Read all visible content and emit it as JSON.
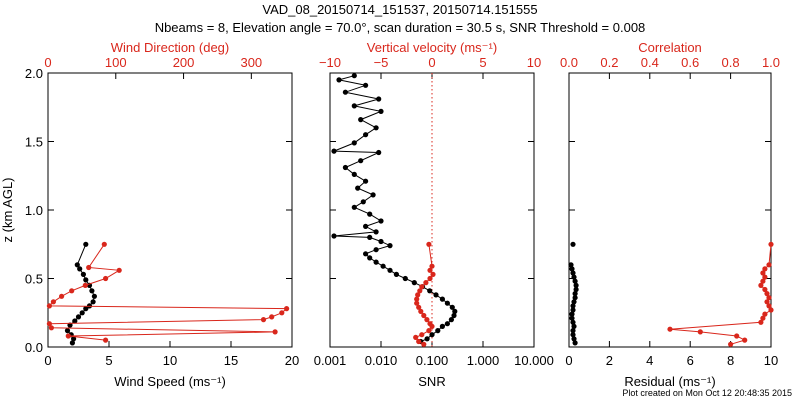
{
  "figure": {
    "title_line1": "VAD_08_20150714_151537, 20150714.151555",
    "title_line2": "Nbeams = 8, Elevation angle = 70.0°, scan duration = 30.5 s, SNR Threshold = 0.008",
    "footer": "Plot created on Mon Oct 12 20:48:35 2015",
    "colors": {
      "black_series": "#000000",
      "red_series": "#d9271c",
      "axis": "#000000"
    }
  },
  "chart_data": [
    {
      "type": "line",
      "panel": "wind",
      "ylabel": "z (km AGL)",
      "ylim": [
        0,
        2.0
      ],
      "yticks": [
        "0.0",
        "0.5",
        "1.0",
        "1.5",
        "2.0"
      ],
      "ytick_values": [
        0,
        0.5,
        1.0,
        1.5,
        2.0
      ],
      "bottom_axis": {
        "label": "Wind Speed (ms⁻¹)",
        "range": [
          0,
          20
        ],
        "ticks": [
          "0",
          "5",
          "10",
          "15",
          "20"
        ],
        "tick_values": [
          0,
          5,
          10,
          15,
          20
        ]
      },
      "top_axis": {
        "label": "Wind Direction (deg)",
        "range": [
          0,
          360
        ],
        "ticks": [
          "0",
          "100",
          "200",
          "300"
        ],
        "tick_values": [
          0,
          100,
          200,
          300
        ]
      },
      "series": [
        {
          "axis": "bottom",
          "color": "#000000",
          "values": [
            {
              "x": 3.1,
              "y": 0.75
            },
            {
              "x": 2.4,
              "y": 0.6
            },
            {
              "x": 2.6,
              "y": 0.57
            },
            {
              "x": 2.9,
              "y": 0.53
            },
            {
              "x": 3.1,
              "y": 0.49
            },
            {
              "x": 3.4,
              "y": 0.45
            },
            {
              "x": 3.6,
              "y": 0.41
            },
            {
              "x": 3.8,
              "y": 0.37
            },
            {
              "x": 3.7,
              "y": 0.33
            },
            {
              "x": 3.4,
              "y": 0.3
            },
            {
              "x": 3.1,
              "y": 0.28
            },
            {
              "x": 2.8,
              "y": 0.25
            },
            {
              "x": 2.5,
              "y": 0.22
            },
            {
              "x": 2.2,
              "y": 0.19
            },
            {
              "x": 1.8,
              "y": 0.16
            },
            {
              "x": 1.6,
              "y": 0.12
            },
            {
              "x": 1.9,
              "y": 0.09
            },
            {
              "x": 2.1,
              "y": 0.06
            },
            {
              "x": 2.0,
              "y": 0.03
            }
          ]
        },
        {
          "axis": "top",
          "color": "#d9271c",
          "values": [
            {
              "x": 83,
              "y": 0.75
            },
            {
              "x": 60,
              "y": 0.58
            },
            {
              "x": 105,
              "y": 0.56
            },
            {
              "x": 85,
              "y": 0.5
            },
            {
              "x": 55,
              "y": 0.45
            },
            {
              "x": 35,
              "y": 0.41
            },
            {
              "x": 20,
              "y": 0.37
            },
            {
              "x": 8,
              "y": 0.33
            },
            {
              "x": 2,
              "y": 0.3
            },
            {
              "x": 352,
              "y": 0.28
            },
            {
              "x": 345,
              "y": 0.25
            },
            {
              "x": 330,
              "y": 0.22
            },
            {
              "x": 318,
              "y": 0.2
            },
            {
              "x": 2,
              "y": 0.17
            },
            {
              "x": 5,
              "y": 0.14
            },
            {
              "x": 335,
              "y": 0.11
            },
            {
              "x": 30,
              "y": 0.08
            },
            {
              "x": 85,
              "y": 0.05
            }
          ]
        }
      ]
    },
    {
      "type": "line",
      "panel": "snr",
      "ylim": [
        0,
        2.0
      ],
      "bottom_axis": {
        "label": "SNR",
        "scale": "log",
        "range": [
          0.001,
          10
        ],
        "ticks": [
          "0.001",
          "0.010",
          "0.100",
          "1.000",
          "10.000"
        ],
        "tick_values": [
          0.001,
          0.01,
          0.1,
          1,
          10
        ]
      },
      "top_axis": {
        "label": "Vertical velocity (ms⁻¹)",
        "range": [
          -10,
          10
        ],
        "ticks": [
          "−10",
          "−5",
          "0",
          "5",
          "10"
        ],
        "tick_values": [
          -10,
          -5,
          0,
          5,
          10
        ]
      },
      "reference_line": {
        "axis": "top",
        "x": 0,
        "style": "dotted",
        "color": "#d9271c"
      },
      "series": [
        {
          "axis": "bottom",
          "color": "#000000",
          "values": [
            {
              "x": 0.003,
              "y": 1.98
            },
            {
              "x": 0.0015,
              "y": 1.95
            },
            {
              "x": 0.005,
              "y": 1.91
            },
            {
              "x": 0.002,
              "y": 1.86
            },
            {
              "x": 0.009,
              "y": 1.81
            },
            {
              "x": 0.003,
              "y": 1.76
            },
            {
              "x": 0.01,
              "y": 1.72
            },
            {
              "x": 0.004,
              "y": 1.66
            },
            {
              "x": 0.008,
              "y": 1.6
            },
            {
              "x": 0.005,
              "y": 1.55
            },
            {
              "x": 0.003,
              "y": 1.49
            },
            {
              "x": 0.0012,
              "y": 1.43
            },
            {
              "x": 0.009,
              "y": 1.42
            },
            {
              "x": 0.004,
              "y": 1.36
            },
            {
              "x": 0.002,
              "y": 1.31
            },
            {
              "x": 0.003,
              "y": 1.26
            },
            {
              "x": 0.005,
              "y": 1.21
            },
            {
              "x": 0.0035,
              "y": 1.16
            },
            {
              "x": 0.007,
              "y": 1.11
            },
            {
              "x": 0.0045,
              "y": 1.06
            },
            {
              "x": 0.003,
              "y": 1.02
            },
            {
              "x": 0.006,
              "y": 0.97
            },
            {
              "x": 0.01,
              "y": 0.92
            },
            {
              "x": 0.005,
              "y": 0.88
            },
            {
              "x": 0.008,
              "y": 0.84
            },
            {
              "x": 0.0012,
              "y": 0.81
            },
            {
              "x": 0.006,
              "y": 0.8
            },
            {
              "x": 0.01,
              "y": 0.77
            },
            {
              "x": 0.015,
              "y": 0.74
            },
            {
              "x": 0.008,
              "y": 0.71
            },
            {
              "x": 0.005,
              "y": 0.68
            },
            {
              "x": 0.006,
              "y": 0.65
            },
            {
              "x": 0.008,
              "y": 0.62
            },
            {
              "x": 0.011,
              "y": 0.59
            },
            {
              "x": 0.015,
              "y": 0.56
            },
            {
              "x": 0.02,
              "y": 0.53
            },
            {
              "x": 0.03,
              "y": 0.5
            },
            {
              "x": 0.045,
              "y": 0.47
            },
            {
              "x": 0.065,
              "y": 0.44
            },
            {
              "x": 0.09,
              "y": 0.41
            },
            {
              "x": 0.12,
              "y": 0.38
            },
            {
              "x": 0.16,
              "y": 0.35
            },
            {
              "x": 0.2,
              "y": 0.32
            },
            {
              "x": 0.25,
              "y": 0.29
            },
            {
              "x": 0.28,
              "y": 0.26
            },
            {
              "x": 0.27,
              "y": 0.23
            },
            {
              "x": 0.24,
              "y": 0.2
            },
            {
              "x": 0.2,
              "y": 0.17
            },
            {
              "x": 0.16,
              "y": 0.15
            },
            {
              "x": 0.13,
              "y": 0.12
            },
            {
              "x": 0.1,
              "y": 0.09
            },
            {
              "x": 0.08,
              "y": 0.06
            },
            {
              "x": 0.06,
              "y": 0.04
            }
          ]
        },
        {
          "axis": "top",
          "color": "#d9271c",
          "values": [
            {
              "x": -0.3,
              "y": 0.75
            },
            {
              "x": 0.0,
              "y": 0.59
            },
            {
              "x": -0.2,
              "y": 0.56
            },
            {
              "x": 0.1,
              "y": 0.53
            },
            {
              "x": -0.2,
              "y": 0.5
            },
            {
              "x": -0.6,
              "y": 0.47
            },
            {
              "x": -1.0,
              "y": 0.44
            },
            {
              "x": -1.2,
              "y": 0.41
            },
            {
              "x": -1.4,
              "y": 0.38
            },
            {
              "x": -1.5,
              "y": 0.35
            },
            {
              "x": -1.5,
              "y": 0.32
            },
            {
              "x": -1.3,
              "y": 0.29
            },
            {
              "x": -1.1,
              "y": 0.26
            },
            {
              "x": -0.8,
              "y": 0.23
            },
            {
              "x": -0.5,
              "y": 0.2
            },
            {
              "x": -0.2,
              "y": 0.17
            },
            {
              "x": 0.0,
              "y": 0.15
            },
            {
              "x": -0.3,
              "y": 0.12
            },
            {
              "x": -1.0,
              "y": 0.09
            },
            {
              "x": -1.6,
              "y": 0.07
            },
            {
              "x": -1.3,
              "y": 0.04
            },
            {
              "x": -0.8,
              "y": 0.02
            }
          ]
        }
      ]
    },
    {
      "type": "line",
      "panel": "residual",
      "ylim": [
        0,
        2.0
      ],
      "bottom_axis": {
        "label": "Residual (ms⁻¹)",
        "range": [
          0,
          10
        ],
        "ticks": [
          "0",
          "2",
          "4",
          "6",
          "8",
          "10"
        ],
        "tick_values": [
          0,
          2,
          4,
          6,
          8,
          10
        ]
      },
      "top_axis": {
        "label": "Correlation",
        "range": [
          0,
          1
        ],
        "ticks": [
          "0.0",
          "0.2",
          "0.4",
          "0.6",
          "0.8",
          "1.0"
        ],
        "tick_values": [
          0,
          0.2,
          0.4,
          0.6,
          0.8,
          1.0
        ]
      },
      "series": [
        {
          "axis": "bottom",
          "color": "#000000",
          "connect": false,
          "values": [
            {
              "x": 0.2,
              "y": 0.75
            },
            {
              "x": 0.1,
              "y": 0.6
            },
            {
              "x": 0.15,
              "y": 0.57
            },
            {
              "x": 0.2,
              "y": 0.54
            },
            {
              "x": 0.25,
              "y": 0.51
            },
            {
              "x": 0.3,
              "y": 0.48
            },
            {
              "x": 0.35,
              "y": 0.45
            },
            {
              "x": 0.35,
              "y": 0.42
            },
            {
              "x": 0.3,
              "y": 0.39
            },
            {
              "x": 0.3,
              "y": 0.36
            },
            {
              "x": 0.25,
              "y": 0.33
            },
            {
              "x": 0.2,
              "y": 0.3
            },
            {
              "x": 0.2,
              "y": 0.27
            },
            {
              "x": 0.15,
              "y": 0.24
            },
            {
              "x": 0.15,
              "y": 0.21
            },
            {
              "x": 0.2,
              "y": 0.18
            },
            {
              "x": 0.25,
              "y": 0.15
            },
            {
              "x": 0.2,
              "y": 0.12
            },
            {
              "x": 0.2,
              "y": 0.09
            },
            {
              "x": 0.25,
              "y": 0.06
            },
            {
              "x": 0.3,
              "y": 0.03
            }
          ]
        },
        {
          "axis": "top",
          "color": "#d9271c",
          "values": [
            {
              "x": 1.0,
              "y": 0.75
            },
            {
              "x": 0.99,
              "y": 0.6
            },
            {
              "x": 0.97,
              "y": 0.57
            },
            {
              "x": 0.96,
              "y": 0.54
            },
            {
              "x": 0.97,
              "y": 0.51
            },
            {
              "x": 0.96,
              "y": 0.48
            },
            {
              "x": 0.95,
              "y": 0.45
            },
            {
              "x": 0.97,
              "y": 0.42
            },
            {
              "x": 0.98,
              "y": 0.39
            },
            {
              "x": 0.99,
              "y": 0.36
            },
            {
              "x": 0.98,
              "y": 0.33
            },
            {
              "x": 0.99,
              "y": 0.3
            },
            {
              "x": 1.0,
              "y": 0.27
            },
            {
              "x": 0.97,
              "y": 0.24
            },
            {
              "x": 0.96,
              "y": 0.21
            },
            {
              "x": 0.95,
              "y": 0.18
            },
            {
              "x": 0.5,
              "y": 0.13
            },
            {
              "x": 0.65,
              "y": 0.11
            },
            {
              "x": 0.83,
              "y": 0.08
            },
            {
              "x": 0.87,
              "y": 0.05
            },
            {
              "x": 0.8,
              "y": 0.02
            }
          ]
        }
      ]
    }
  ]
}
